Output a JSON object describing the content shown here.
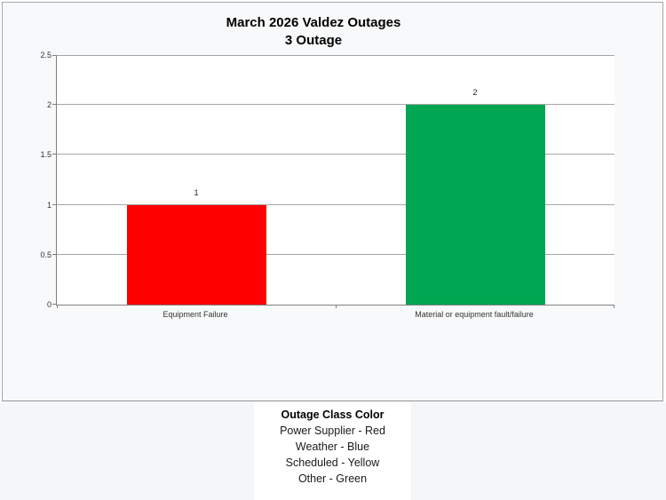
{
  "chart_data": {
    "type": "bar",
    "title": "March 2026 Valdez Outages",
    "subtitle": "3 Outage",
    "categories": [
      "Equipment Failure",
      "Material or equipment fault/failure"
    ],
    "values": [
      1,
      2
    ],
    "data_labels": [
      "1",
      "2"
    ],
    "bar_colors": [
      "#ff0000",
      "#00a651"
    ],
    "xlabel": "",
    "ylabel": "",
    "ylim": [
      0,
      2.5
    ],
    "ytick_interval": 0.5,
    "yticks": [
      0,
      0.5,
      1,
      1.5,
      2,
      2.5
    ],
    "ytick_labels": [
      "0",
      "0.5",
      "1",
      "1.5",
      "2",
      "2.5"
    ],
    "grid": true,
    "bar_width_fraction": 0.5,
    "legend_position": "below-chart"
  },
  "legend": {
    "title": "Outage Class Color",
    "entries": [
      "Power Supplier - Red",
      "Weather - Blue",
      "Scheduled - Yellow",
      "Other - Green"
    ]
  },
  "colors": {
    "bar_red": "#ff0000",
    "bar_green": "#00a651",
    "gridline": "#a6a6a6",
    "axis": "#808080",
    "chart_background": "#f8f9fa",
    "page_lower_background": "#f5f6f7",
    "frame_border": "#a3a7aa"
  }
}
